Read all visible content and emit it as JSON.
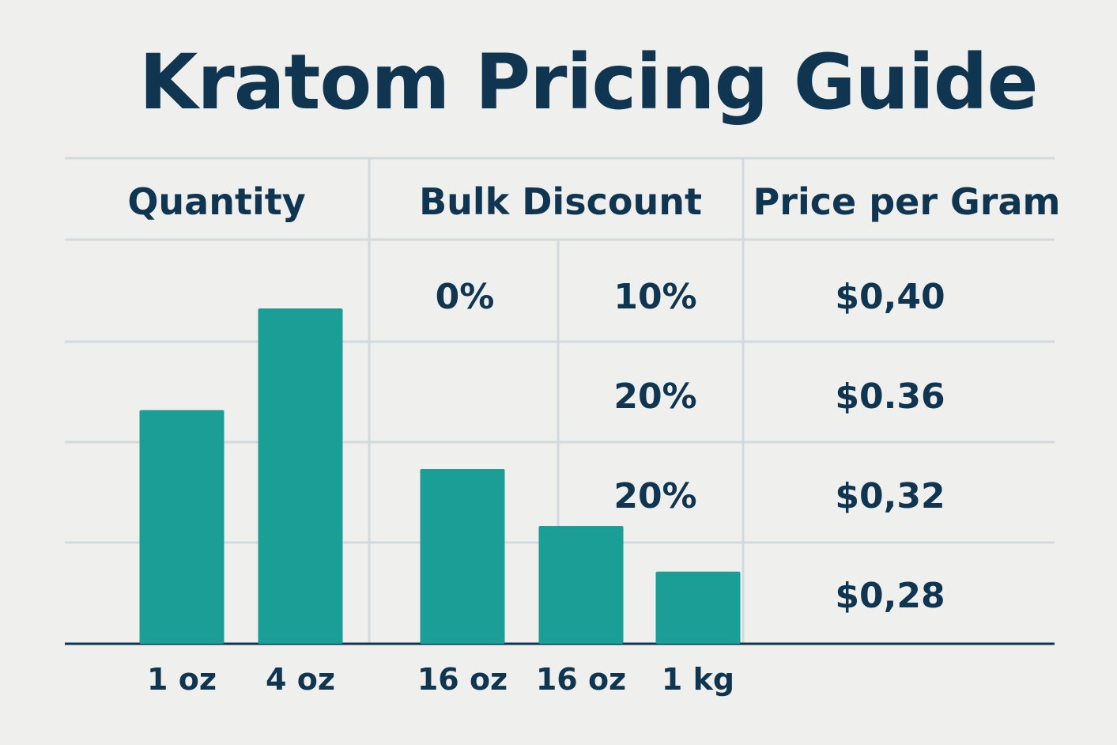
{
  "chart_data": {
    "type": "bar",
    "title": "Kratom Pricing Guide",
    "categories": [
      "1 oz",
      "4 oz",
      "16 oz",
      "16 oz",
      "1 kg"
    ],
    "values": [
      2.3,
      3.3,
      1.72,
      1.16,
      0.71
    ],
    "ylim": [
      0,
      4
    ],
    "grid": true,
    "colors": {
      "bar": "#1a9e96",
      "text": "#0f3550",
      "grid": "#d3dadf",
      "axis": "#0f3550"
    },
    "table": {
      "headers": [
        "Quantity",
        "Bulk Discount",
        "Price per Gram"
      ],
      "rows": [
        {
          "discount_a": "0%",
          "discount_b": "10%",
          "price": "$0,40"
        },
        {
          "discount_a": "",
          "discount_b": "20%",
          "price": "$0.36"
        },
        {
          "discount_a": "",
          "discount_b": "20%",
          "price": "$0,32"
        },
        {
          "discount_a": "",
          "discount_b": "",
          "price": "$0,28"
        }
      ]
    }
  }
}
